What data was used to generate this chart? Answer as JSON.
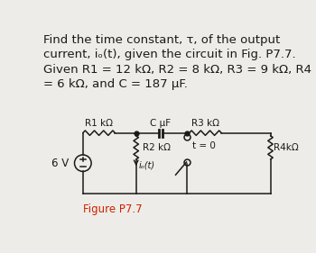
{
  "background_color": "#eeece8",
  "text_color": "#1a1a1a",
  "title_text": "Find the time constant, τ, of the output\ncurrent, iₒ(t), given the circuit in Fig. P7.7.\nGiven R1 = 12 kΩ, R2 = 8 kΩ, R3 = 9 kΩ, R4\n= 6 kΩ, and C = 187 μF.",
  "figure_label": "Figure P7.7",
  "figure_label_color": "#cc2200",
  "voltage_label": "6 V",
  "R1_label": "R1 kΩ",
  "R2_label": "R2 kΩ",
  "R3_label": "R3 kΩ",
  "R4_label": "R4kΩ",
  "C_label": "C μF",
  "io_label": "iₒ(t)",
  "t_label": "t = 0",
  "wire_color": "#1a1a1a",
  "title_fontsize": 9.5,
  "label_fontsize": 7.5
}
